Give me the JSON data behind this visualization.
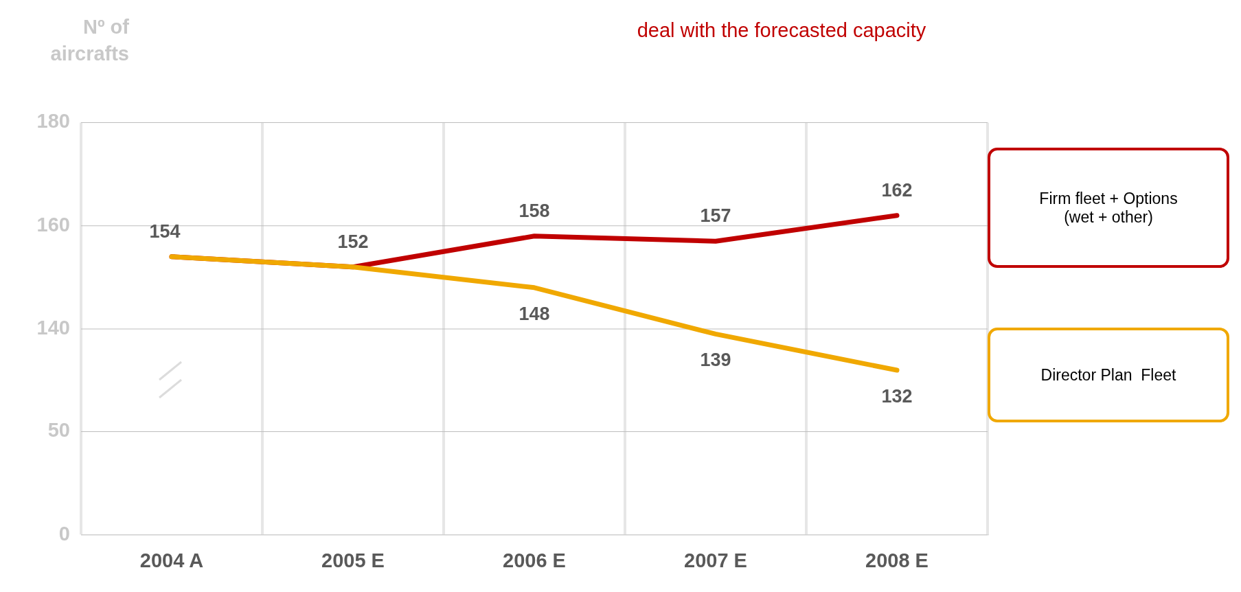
{
  "chart_data": [
    {
      "type": "line",
      "title": "deal with the forecasted capacity",
      "ylabel": "Nº of aircrafts",
      "series": [
        {
          "name": "Firm fleet + Options (wet + other)",
          "color": "#c00000",
          "values": [
            154,
            152,
            158,
            157,
            162
          ],
          "value_labels": [
            "154",
            "152",
            "158",
            "157",
            "162"
          ]
        },
        {
          "name": "Director Plan  Fleet",
          "color": "#f0a800",
          "values": [
            154,
            152,
            148,
            139,
            132
          ],
          "value_labels": [
            null,
            null,
            "148",
            "139",
            "132"
          ]
        }
      ],
      "ylim": [
        120,
        180
      ],
      "yticks": [
        140,
        160,
        180
      ],
      "grid": true,
      "legend": "right",
      "tick_labels": "y",
      "marker": "none",
      "line_style": "solid"
    },
    {
      "type": "line",
      "categories": [
        "2004 A",
        "2005 E",
        "2006 E",
        "2007 E",
        "2008 E"
      ],
      "ylim": [
        0,
        50
      ],
      "yticks": [
        0,
        50
      ],
      "grid": true
    }
  ]
}
